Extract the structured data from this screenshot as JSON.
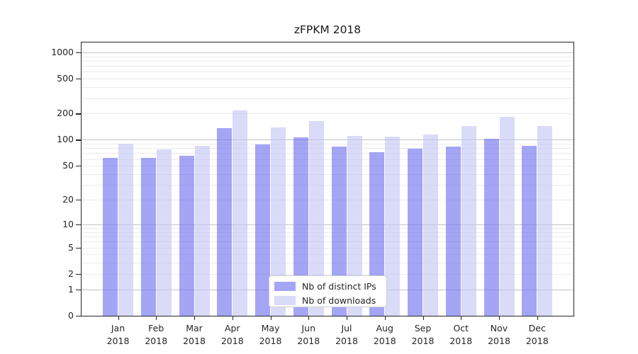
{
  "chart_data": {
    "type": "bar",
    "title": "zFPKM 2018",
    "categories": [
      "Jan 2018",
      "Feb 2018",
      "Mar 2018",
      "Apr 2018",
      "May 2018",
      "Jun 2018",
      "Jul 2018",
      "Aug 2018",
      "Sep 2018",
      "Oct 2018",
      "Nov 2018",
      "Dec 2018"
    ],
    "x_tick_month": [
      "Jan",
      "Feb",
      "Mar",
      "Apr",
      "May",
      "Jun",
      "Jul",
      "Aug",
      "Sep",
      "Oct",
      "Nov",
      "Dec"
    ],
    "x_tick_year": "2018",
    "series": [
      {
        "name": "Nb of distinct IPs",
        "color": "#6e6ef0",
        "alpha": 0.62,
        "values": [
          62,
          62,
          66,
          135,
          88,
          106,
          84,
          72,
          79,
          83,
          103,
          86
        ]
      },
      {
        "name": "Nb of downloads",
        "color": "#c4c4f5",
        "alpha": 0.62,
        "values": [
          90,
          77,
          86,
          218,
          138,
          165,
          110,
          108,
          115,
          145,
          182,
          145
        ]
      }
    ],
    "y_axis": {
      "scale": "symlog",
      "tick_values": [
        0,
        1,
        2,
        5,
        10,
        20,
        50,
        100,
        200,
        500,
        1000
      ],
      "minor_tick_values": [
        3,
        4,
        6,
        7,
        8,
        9,
        30,
        40,
        60,
        70,
        80,
        90,
        300,
        400,
        600,
        700,
        800,
        900
      ],
      "ylim_top": 1200
    },
    "legend_position": "lower center",
    "grid": true,
    "colors": {
      "background": "#ffffff",
      "spine": "#262626",
      "text": "#262626",
      "grid_major": "#c3c3c3",
      "grid_minor": "#ebebeb"
    }
  }
}
